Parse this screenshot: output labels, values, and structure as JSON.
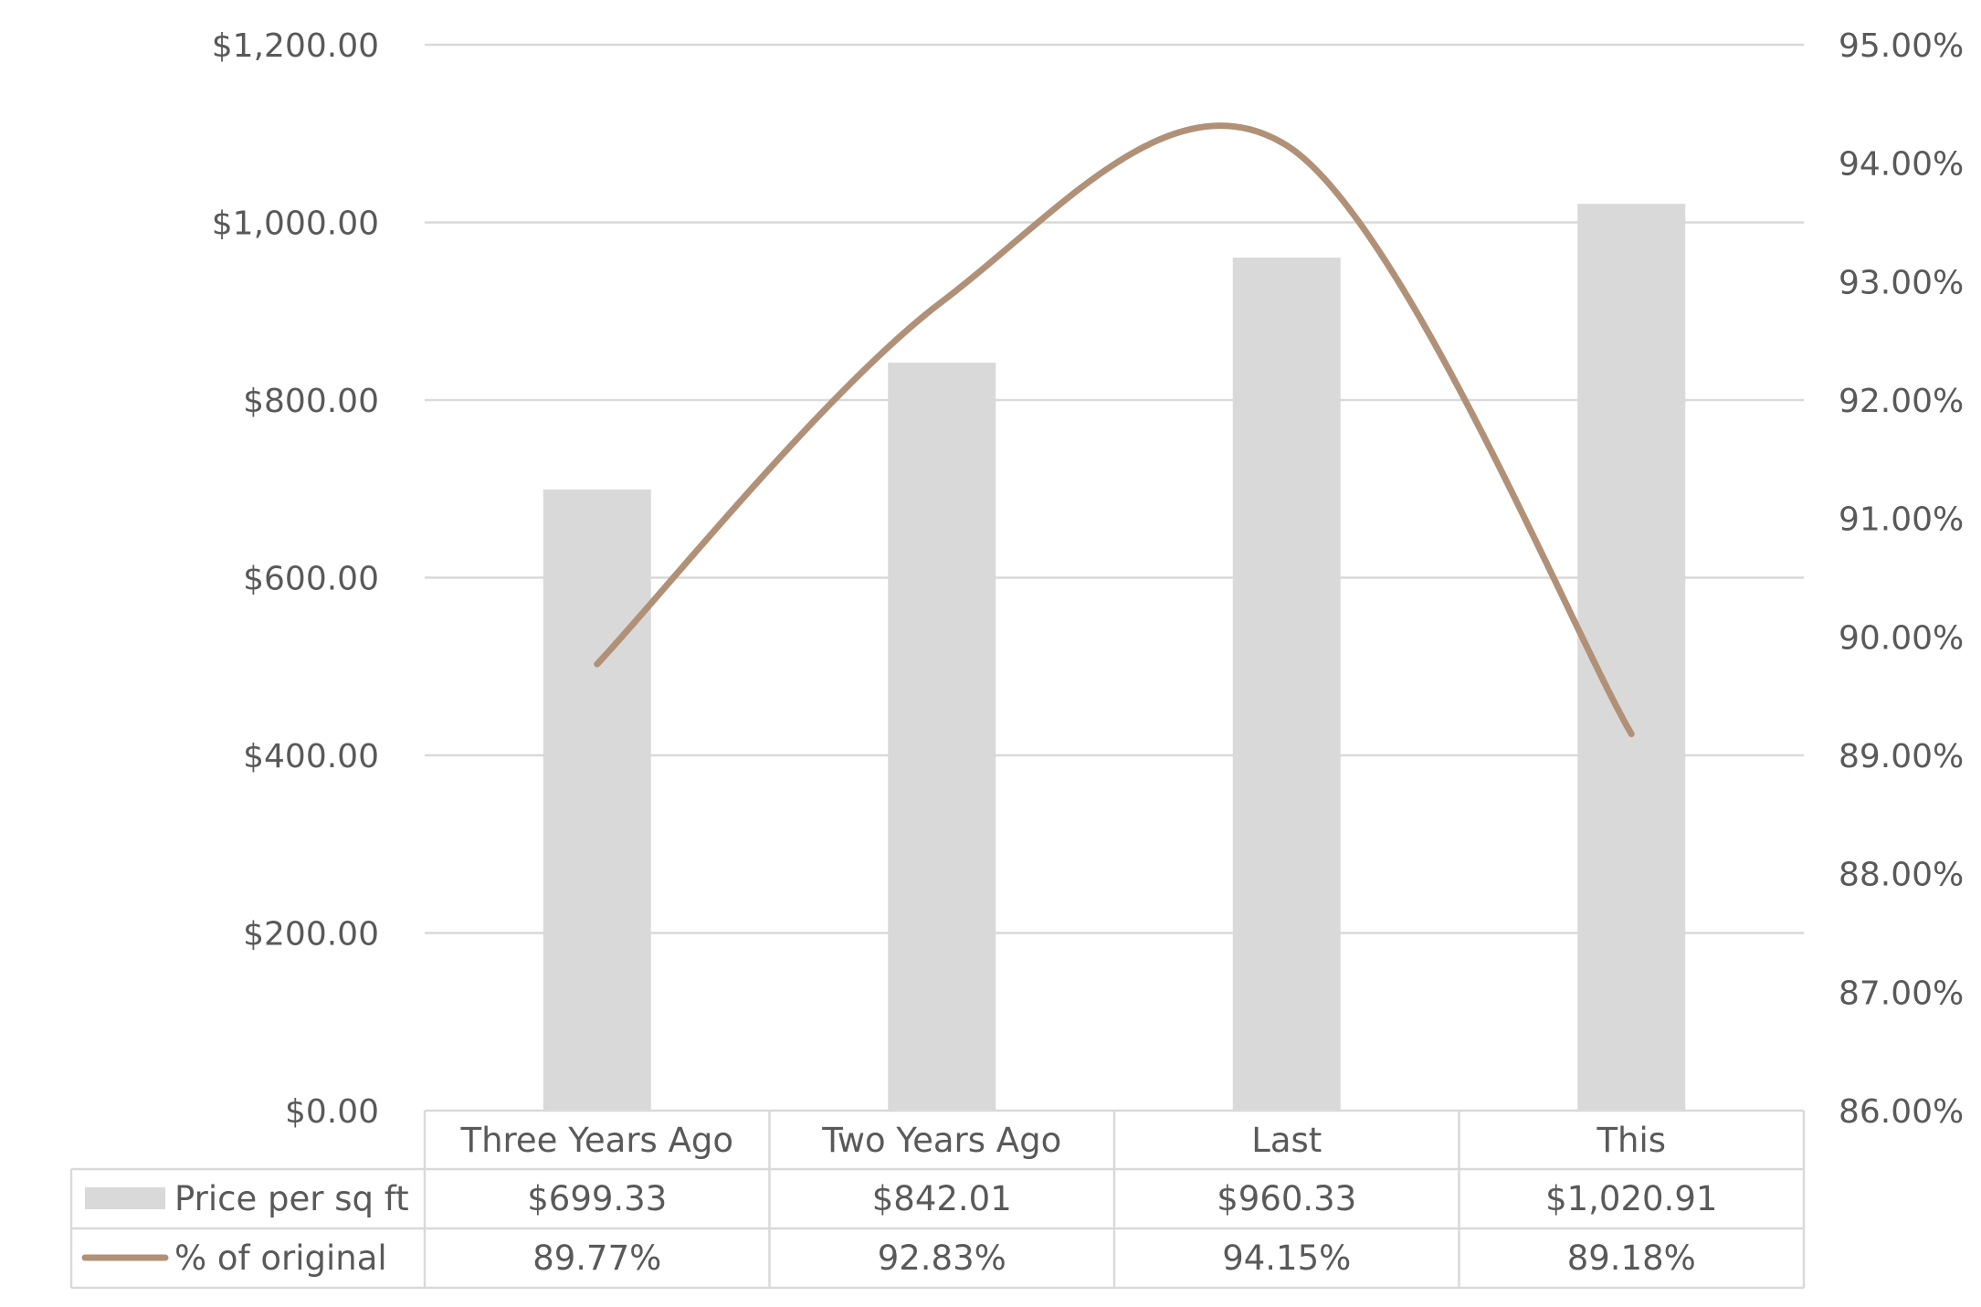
{
  "chart_data": {
    "type": "bar",
    "categories": [
      "Three Years Ago",
      "Two Years Ago",
      "Last",
      "This"
    ],
    "series": [
      {
        "name": "Price per sq ft",
        "kind": "bar",
        "axis": "left",
        "values": [
          699.33,
          842.01,
          960.33,
          1020.91
        ],
        "labels": [
          "$699.33",
          "$842.01",
          "$960.33",
          "$1,020.91"
        ],
        "color": "#d9d9d9"
      },
      {
        "name": "% of original",
        "kind": "line",
        "smooth": true,
        "axis": "right",
        "values": [
          89.77,
          92.83,
          94.15,
          89.18
        ],
        "labels": [
          "89.77%",
          "92.83%",
          "94.15%",
          "89.18%"
        ],
        "color": "#b09178"
      }
    ],
    "y_left": {
      "range": [
        0,
        1200
      ],
      "ticks": [
        0,
        200,
        400,
        600,
        800,
        1000,
        1200
      ],
      "tick_labels": [
        "$0.00",
        "$200.00",
        "$400.00",
        "$600.00",
        "$800.00",
        "$1,000.00",
        "$1,200.00"
      ]
    },
    "y_right": {
      "range": [
        86,
        95
      ],
      "ticks": [
        86,
        87,
        88,
        89,
        90,
        91,
        92,
        93,
        94,
        95
      ],
      "tick_labels": [
        "86.00%",
        "87.00%",
        "88.00%",
        "89.00%",
        "90.00%",
        "91.00%",
        "92.00%",
        "93.00%",
        "94.00%",
        "95.00%"
      ]
    },
    "grid": true,
    "legend": "data-table",
    "gridline_color": "#d9d9d9",
    "table_border_color": "#d9d9d9"
  }
}
